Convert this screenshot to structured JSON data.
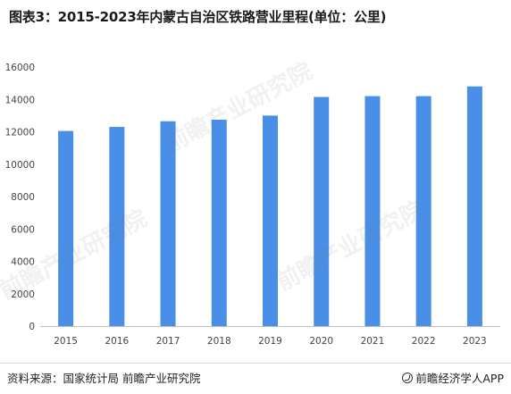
{
  "title": "图表3：2015-2023年内蒙古自治区铁路营业里程(单位：公里)",
  "source": "资料来源：国家统计局 前瞻产业研究院",
  "brand": "前瞻经济学人APP",
  "watermark": "前瞻产业研究院",
  "colors": {
    "bar": "#4a8fe7",
    "grid": "#e6e6e6",
    "axis": "#bfbfbf"
  },
  "chart_data": {
    "type": "bar",
    "categories": [
      "2015",
      "2016",
      "2017",
      "2018",
      "2019",
      "2020",
      "2021",
      "2022",
      "2023"
    ],
    "values": [
      12050,
      12300,
      12650,
      12750,
      13000,
      14150,
      14200,
      14200,
      14800
    ],
    "ylim": [
      0,
      16000
    ],
    "yticks": [
      0,
      2000,
      4000,
      6000,
      8000,
      10000,
      12000,
      14000,
      16000
    ],
    "xlabel": "",
    "ylabel": "",
    "grid": false,
    "legend": false
  }
}
